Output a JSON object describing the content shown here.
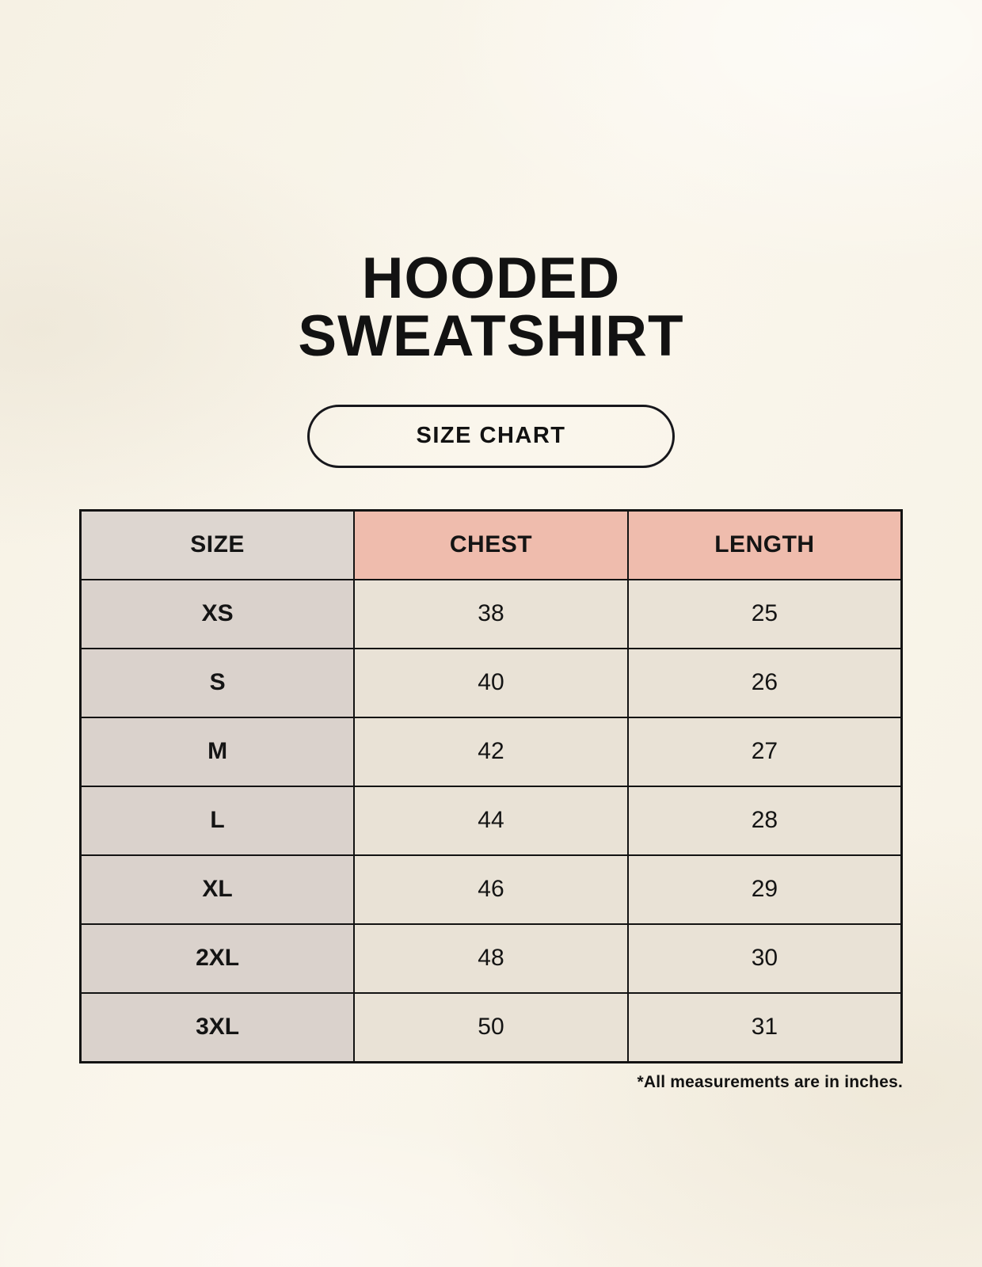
{
  "page": {
    "title_line1": "HOODED",
    "title_line2": "SWEATSHIRT",
    "badge_label": "SIZE CHART",
    "footnote": "*All measurements are in inches."
  },
  "chart_data": {
    "type": "table",
    "title": "HOODED SWEATSHIRT — SIZE CHART",
    "columns": [
      "SIZE",
      "CHEST",
      "LENGTH"
    ],
    "rows": [
      [
        "XS",
        "38",
        "25"
      ],
      [
        "S",
        "40",
        "26"
      ],
      [
        "M",
        "42",
        "27"
      ],
      [
        "L",
        "44",
        "28"
      ],
      [
        "XL",
        "46",
        "29"
      ],
      [
        "2XL",
        "48",
        "30"
      ],
      [
        "3XL",
        "50",
        "31"
      ]
    ],
    "units": "inches"
  },
  "colors": {
    "background_cream": "#f8f3e8",
    "size_column_bg": "#dad2cc",
    "header_size_bg": "#ddd6d0",
    "header_accent_bg": "#efbcad",
    "data_cell_bg": "#e9e2d6",
    "border": "#131313",
    "text": "#121212"
  }
}
